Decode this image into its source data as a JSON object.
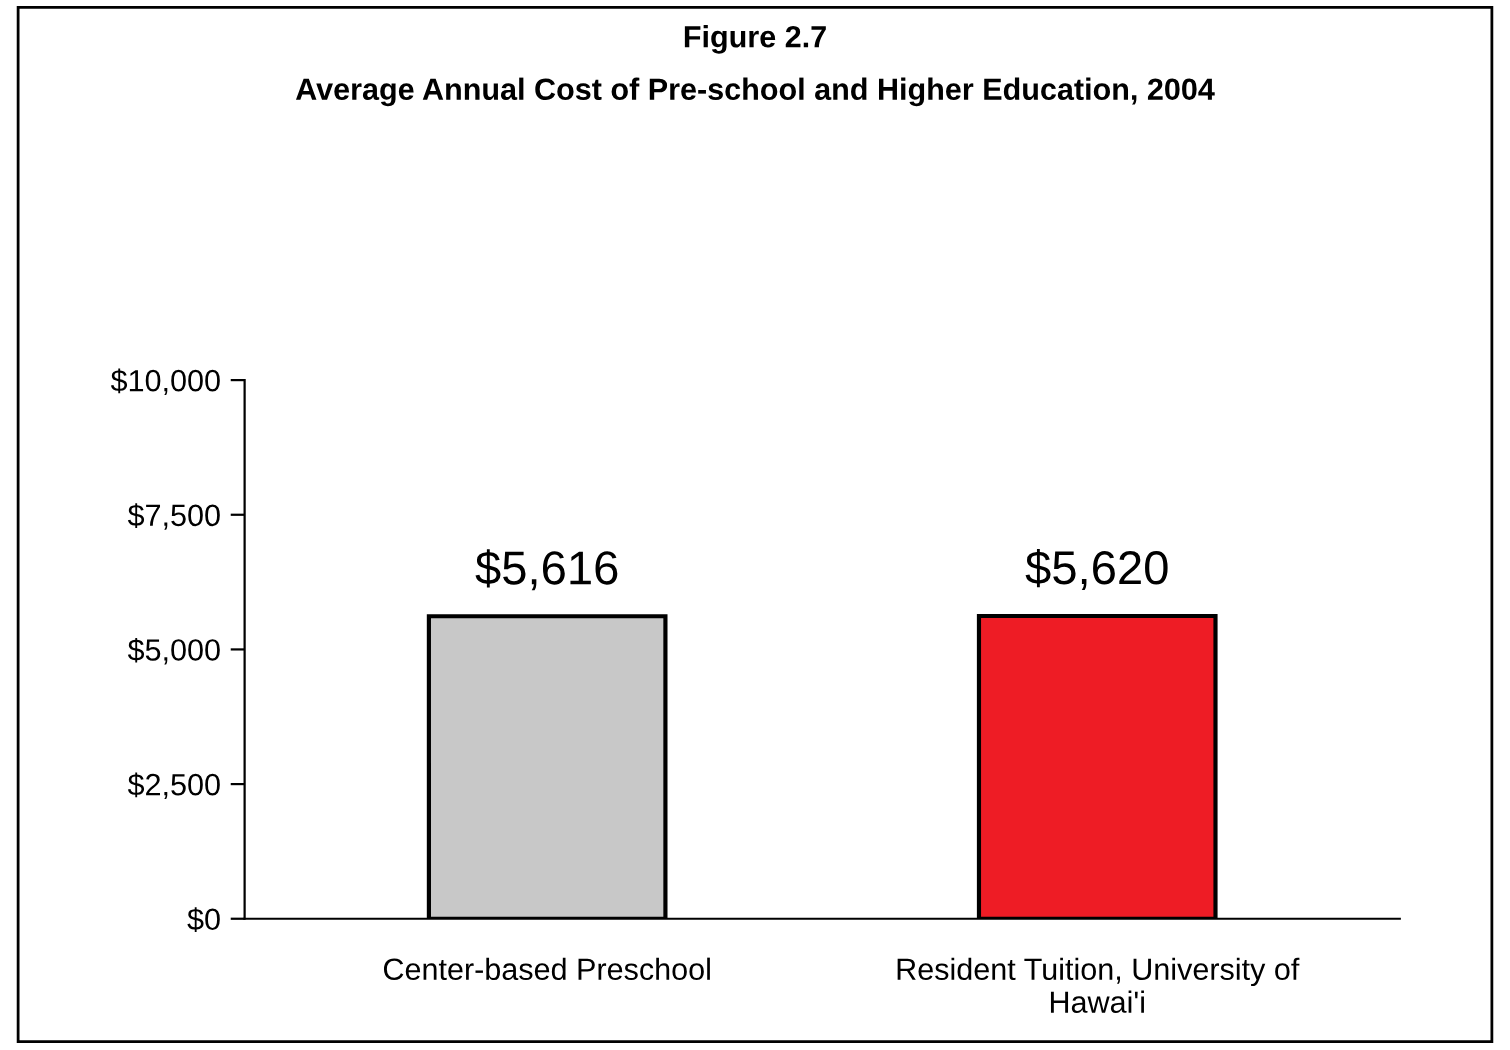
{
  "chart_data": {
    "type": "bar",
    "title": "Figure 2.7",
    "subtitle": "Average Annual Cost of Pre-school and Higher Education, 2004",
    "categories": [
      "Center-based Preschool",
      "Resident Tuition, University of\nHawai'i"
    ],
    "values": [
      5616,
      5620
    ],
    "colors": [
      "#c8c8c8",
      "#ee1c25"
    ],
    "value_labels": [
      "$5,616",
      "$5,620"
    ],
    "ylim": [
      0,
      10000
    ],
    "yticks": [
      {
        "value": 0,
        "label": "$0"
      },
      {
        "value": 2500,
        "label": "$2,500"
      },
      {
        "value": 5000,
        "label": "$5,000"
      },
      {
        "value": 7500,
        "label": "$7,500"
      },
      {
        "value": 10000,
        "label": "$10,000"
      }
    ],
    "grid": false,
    "legend": false
  }
}
